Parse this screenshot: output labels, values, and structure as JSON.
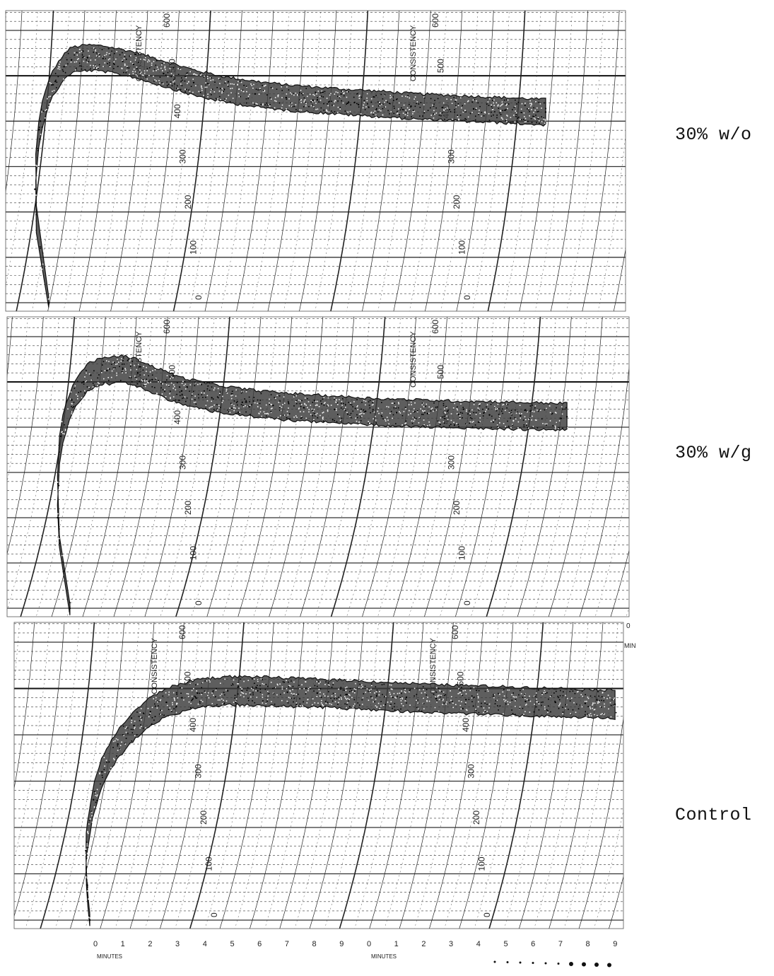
{
  "chart_data": [
    {
      "type": "line",
      "title": "30% w/o",
      "axis_label": "CONSISTENCY",
      "x_unit": "MIN",
      "y_ticks": [
        "0",
        "100",
        "200",
        "300",
        "400",
        "500",
        "600"
      ],
      "ylim": [
        0,
        600
      ],
      "x": [
        0.0,
        0.1,
        0.25,
        0.5,
        0.8,
        1.0,
        1.5,
        2.0,
        3.0,
        4.0,
        5.0,
        6.0,
        7.0,
        8.0,
        9.0,
        10.0,
        11.0,
        12.0,
        13.0,
        14.0,
        15.0,
        16.3
      ],
      "values": [
        0,
        250,
        400,
        480,
        520,
        535,
        540,
        538,
        525,
        505,
        485,
        470,
        460,
        452,
        447,
        442,
        438,
        433,
        430,
        427,
        424,
        420
      ],
      "band_halfwidth": 16
    },
    {
      "type": "line",
      "title": "30% w/g",
      "axis_label": "CONSISTENCY",
      "x_unit": "MIN",
      "y_ticks": [
        "0",
        "100",
        "200",
        "300",
        "400",
        "500",
        "600"
      ],
      "ylim": [
        0,
        600
      ],
      "x": [
        0.0,
        0.1,
        0.25,
        0.5,
        0.8,
        1.0,
        1.5,
        2.0,
        2.5,
        3.0,
        4.0,
        5.0,
        6.0,
        7.0,
        8.0,
        9.0,
        10.0,
        11.0,
        12.0,
        13.0,
        14.0,
        15.0,
        16.5
      ],
      "values": [
        0,
        200,
        380,
        460,
        500,
        515,
        525,
        528,
        520,
        505,
        480,
        465,
        455,
        448,
        443,
        439,
        435,
        432,
        430,
        428,
        427,
        425,
        423
      ],
      "band_halfwidth": 17
    },
    {
      "type": "line",
      "title": "Control",
      "axis_label": "CONSISTENCY",
      "x_unit": "MIN",
      "x_label": "MINUTES",
      "y_ticks": [
        "0",
        "100",
        "200",
        "300",
        "400",
        "500",
        "600"
      ],
      "ylim": [
        0,
        600
      ],
      "x": [
        0.0,
        0.3,
        0.7,
        1.0,
        1.5,
        2.0,
        2.5,
        3.0,
        3.5,
        4.0,
        5.0,
        6.0,
        7.0,
        8.0,
        9.0,
        10.0,
        11.0,
        12.0,
        13.0,
        14.0,
        15.0,
        16.0,
        17.0,
        18.0
      ],
      "values": [
        0,
        150,
        260,
        320,
        380,
        420,
        450,
        470,
        480,
        490,
        495,
        495,
        492,
        490,
        487,
        484,
        481,
        478,
        476,
        474,
        472,
        470,
        468,
        466
      ],
      "band_halfwidth": 18,
      "x_ticks": [
        "0",
        "1",
        "2",
        "3",
        "4",
        "5",
        "6",
        "7",
        "8",
        "9",
        "0",
        "1",
        "2",
        "3",
        "4",
        "5",
        "6",
        "7",
        "8",
        "9"
      ]
    }
  ],
  "labels": {
    "panel_0": "30% w/o",
    "panel_1": "30% w/g",
    "panel_2": "Control"
  }
}
